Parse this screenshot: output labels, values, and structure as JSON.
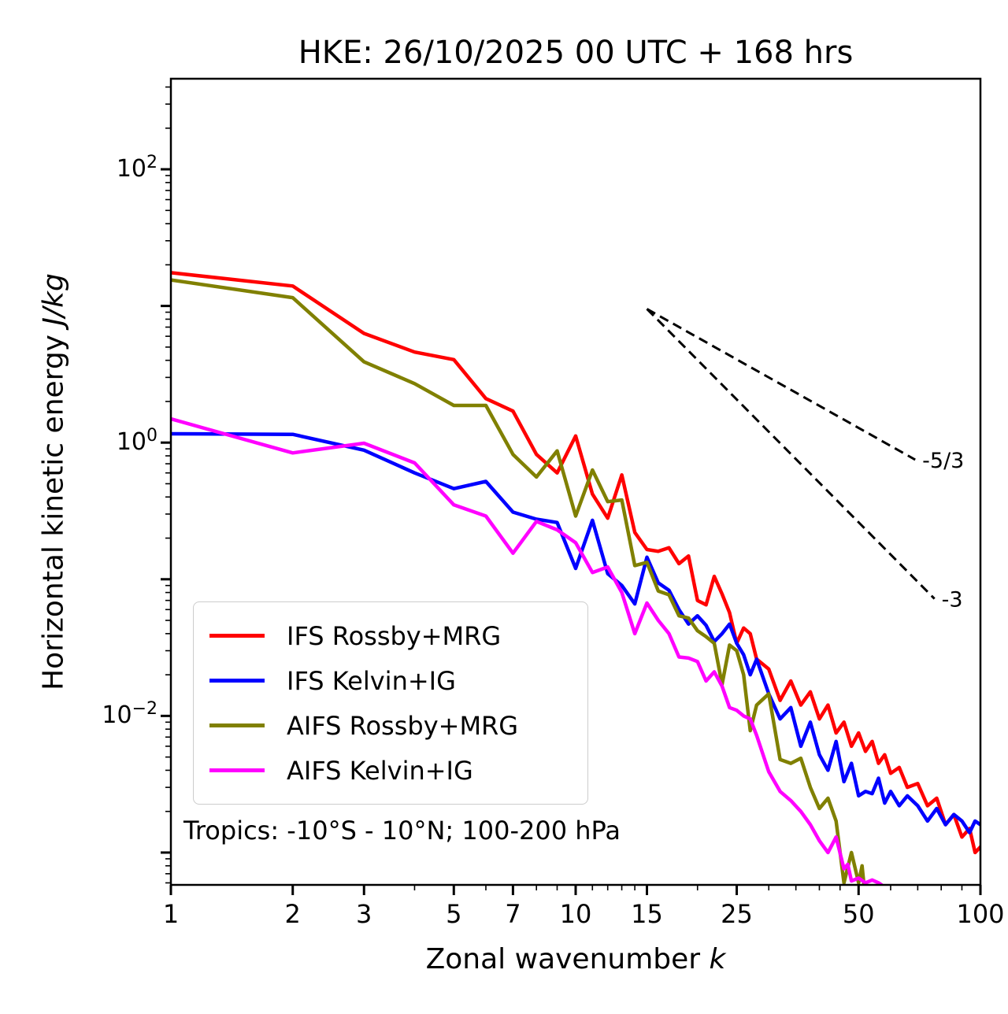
{
  "labels": {
    "title": "HKE: 26/10/2025 00 UTC + 168 hrs",
    "xlabel_prefix": "Zonal wavenumber ",
    "xlabel_italic": "k",
    "ylabel_prefix": "Horizontal kinetic energy ",
    "ylabel_italic": "J/kg",
    "annotation": "Tropics: -10°S - 10°N; 100-200 hPa"
  },
  "legend": {
    "items": [
      {
        "label": "IFS Rossby+MRG",
        "color": "#ff0000"
      },
      {
        "label": "IFS Kelvin+IG",
        "color": "#0000ff"
      },
      {
        "label": "AIFS Rossby+MRG",
        "color": "#808000"
      },
      {
        "label": "AIFS Kelvin+IG",
        "color": "#ff00ff"
      }
    ]
  },
  "chart_data": {
    "type": "line",
    "title": "HKE: 26/10/2025 00 UTC + 168 hrs",
    "xlabel": "Zonal wavenumber k",
    "ylabel": "Horizontal kinetic energy J/kg",
    "annotation": "Tropics: -10°S - 10°N; 100-200 hPa",
    "x_scale": "log",
    "y_scale": "log",
    "xlim": [
      1,
      100
    ],
    "ylim": [
      0.00058,
      460
    ],
    "grid": false,
    "legend_position": "lower left",
    "x_major_ticks": [
      1,
      2,
      3,
      5,
      7,
      10,
      15,
      25,
      50,
      100
    ],
    "x_major_tick_labels": [
      "1",
      "2",
      "3",
      "5",
      "7",
      "10",
      "15",
      "25",
      "50",
      "100"
    ],
    "x_minor_ticks": [
      4,
      6,
      8,
      9,
      11,
      12,
      13,
      14,
      20,
      30,
      35,
      40,
      45,
      60,
      70,
      80,
      90
    ],
    "y_decades": [
      2,
      1,
      0,
      -1,
      -2,
      -3
    ],
    "y_labeled_ticks": [
      {
        "base": "10",
        "exp": "2",
        "value": 100
      },
      {
        "base": "10",
        "exp": "0",
        "value": 1
      },
      {
        "base": "10",
        "exp": "−2",
        "value": 0.01
      }
    ],
    "series": [
      {
        "name": "IFS Rossby+MRG",
        "color": "#ff0000",
        "k": [
          1,
          2,
          3,
          4,
          5,
          6,
          7,
          8,
          9,
          10,
          11,
          12,
          13,
          14,
          15,
          16,
          17,
          18,
          19,
          20,
          21,
          22,
          23,
          24,
          25,
          26,
          27,
          28,
          30,
          32,
          34,
          36,
          38,
          40,
          42,
          44,
          46,
          48,
          50,
          52,
          54,
          56,
          58,
          60,
          63,
          66,
          70,
          74,
          78,
          82,
          86,
          90,
          94,
          97,
          100
        ],
        "values": [
          17.5,
          14.0,
          6.3,
          4.6,
          4.05,
          2.1,
          1.7,
          0.82,
          0.6,
          1.12,
          0.42,
          0.28,
          0.58,
          0.22,
          0.165,
          0.16,
          0.17,
          0.13,
          0.148,
          0.07,
          0.065,
          0.105,
          0.078,
          0.057,
          0.034,
          0.044,
          0.04,
          0.026,
          0.022,
          0.013,
          0.018,
          0.012,
          0.015,
          0.0095,
          0.012,
          0.0075,
          0.009,
          0.006,
          0.0075,
          0.0055,
          0.0065,
          0.0045,
          0.0052,
          0.0038,
          0.0042,
          0.003,
          0.0032,
          0.0022,
          0.0025,
          0.0016,
          0.0019,
          0.0013,
          0.0015,
          0.001,
          0.0011
        ]
      },
      {
        "name": "IFS Kelvin+IG",
        "color": "#0000ff",
        "k": [
          1,
          2,
          3,
          4,
          5,
          6,
          7,
          8,
          9,
          10,
          11,
          12,
          13,
          14,
          15,
          16,
          17,
          18,
          19,
          20,
          21,
          22,
          23,
          24,
          25,
          26,
          27,
          28,
          30,
          32,
          34,
          36,
          38,
          40,
          42,
          44,
          46,
          48,
          50,
          52,
          54,
          56,
          58,
          60,
          63,
          66,
          70,
          74,
          78,
          82,
          86,
          90,
          94,
          97,
          100
        ],
        "values": [
          1.16,
          1.15,
          0.88,
          0.6,
          0.46,
          0.52,
          0.31,
          0.275,
          0.26,
          0.12,
          0.27,
          0.11,
          0.09,
          0.066,
          0.145,
          0.094,
          0.083,
          0.06,
          0.047,
          0.054,
          0.046,
          0.035,
          0.04,
          0.047,
          0.034,
          0.028,
          0.02,
          0.026,
          0.0145,
          0.0095,
          0.0115,
          0.006,
          0.009,
          0.0052,
          0.004,
          0.0065,
          0.0033,
          0.0045,
          0.0026,
          0.0028,
          0.0027,
          0.0035,
          0.0023,
          0.0028,
          0.0022,
          0.0026,
          0.0022,
          0.0017,
          0.0021,
          0.0016,
          0.0019,
          0.0017,
          0.0014,
          0.0017,
          0.0016
        ]
      },
      {
        "name": "AIFS Rossby+MRG",
        "color": "#808000",
        "k": [
          1,
          2,
          3,
          4,
          5,
          6,
          7,
          8,
          9,
          10,
          11,
          12,
          13,
          14,
          15,
          16,
          17,
          18,
          19,
          20,
          21,
          22,
          23,
          24,
          25,
          26,
          27,
          28,
          30,
          32,
          34,
          36,
          38,
          40,
          42,
          44,
          46,
          48,
          50,
          51,
          52
        ],
        "values": [
          15.5,
          11.5,
          3.9,
          2.7,
          1.87,
          1.87,
          0.82,
          0.56,
          0.87,
          0.29,
          0.63,
          0.37,
          0.38,
          0.126,
          0.133,
          0.082,
          0.077,
          0.054,
          0.052,
          0.042,
          0.038,
          0.034,
          0.017,
          0.033,
          0.03,
          0.02,
          0.0078,
          0.012,
          0.0145,
          0.0048,
          0.0045,
          0.0049,
          0.003,
          0.0021,
          0.0025,
          0.0017,
          0.0006,
          0.001,
          0.0006,
          0.0008,
          0.00045
        ]
      },
      {
        "name": "AIFS Kelvin+IG",
        "color": "#ff00ff",
        "k": [
          1,
          2,
          3,
          4,
          5,
          6,
          7,
          8,
          9,
          10,
          11,
          12,
          13,
          14,
          15,
          16,
          17,
          18,
          19,
          20,
          21,
          22,
          23,
          24,
          25,
          26,
          27,
          28,
          30,
          32,
          34,
          36,
          38,
          40,
          42,
          44,
          46,
          47,
          48,
          50,
          52,
          54,
          56,
          57,
          58
        ],
        "values": [
          1.49,
          0.84,
          0.99,
          0.71,
          0.35,
          0.29,
          0.155,
          0.265,
          0.23,
          0.185,
          0.112,
          0.123,
          0.08,
          0.04,
          0.067,
          0.05,
          0.04,
          0.027,
          0.0265,
          0.025,
          0.018,
          0.021,
          0.0165,
          0.0115,
          0.011,
          0.01,
          0.0095,
          0.0072,
          0.0039,
          0.0028,
          0.0024,
          0.002,
          0.0016,
          0.00122,
          0.001,
          0.0013,
          0.00076,
          0.00082,
          0.00062,
          0.00065,
          0.0006,
          0.00063,
          0.0006,
          0.00058,
          0.0005
        ]
      }
    ],
    "reference_lines": [
      {
        "label": "-5/3",
        "k": [
          15,
          69
        ],
        "values": [
          9.5,
          0.75
        ],
        "style": "dashed",
        "color": "#000000"
      },
      {
        "label": "-3",
        "k": [
          15,
          77
        ],
        "values": [
          9.5,
          0.072
        ],
        "style": "dashed",
        "color": "#000000"
      }
    ]
  }
}
